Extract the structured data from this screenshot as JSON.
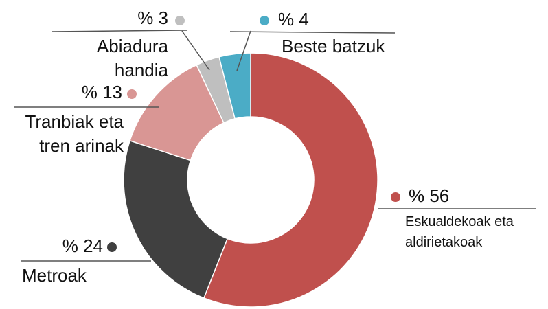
{
  "chart_data": {
    "type": "donut",
    "categories": [
      "Eskualdekoak eta aldirietakoak",
      "Metroak",
      "Tranbiak eta tren arinak",
      "Abiadura handia",
      "Beste batzuk"
    ],
    "values": [
      56,
      24,
      13,
      3,
      4
    ],
    "value_labels": [
      "% 56",
      "% 24",
      "% 13",
      "% 3",
      "% 4"
    ],
    "colors": [
      "#c0504d",
      "#404040",
      "#d99694",
      "#bfbfbf",
      "#4bacc6"
    ]
  }
}
